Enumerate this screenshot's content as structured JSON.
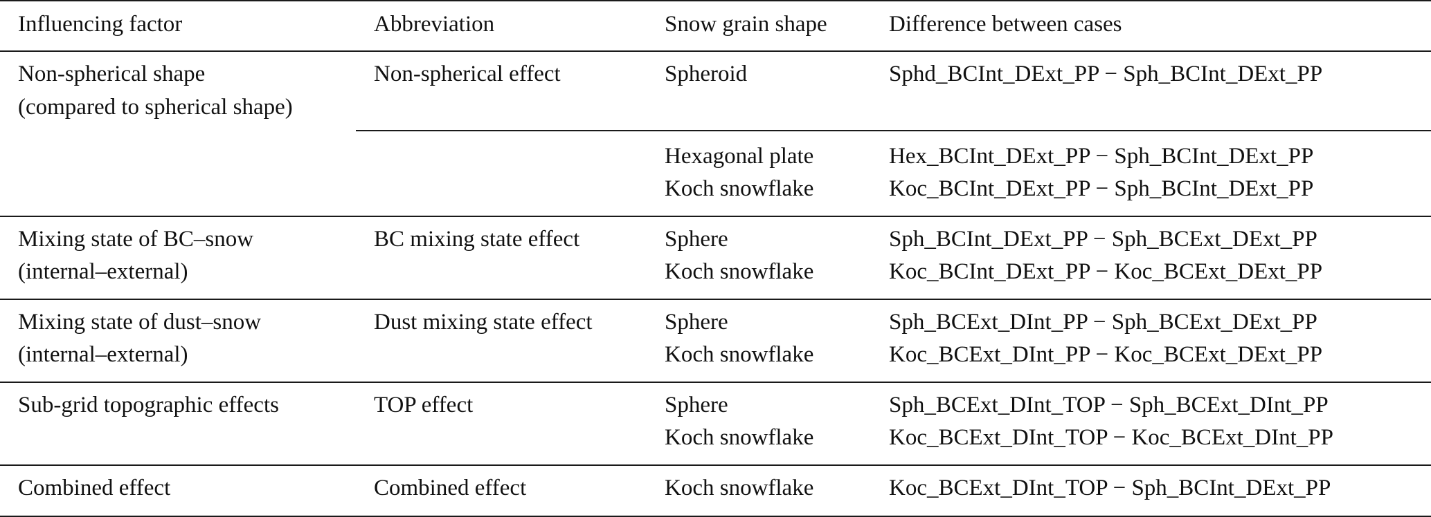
{
  "table": {
    "headers": [
      "Influencing factor",
      "Abbreviation",
      "Snow grain shape",
      "Difference between cases"
    ],
    "rows": [
      {
        "factor": [
          "Non-spherical shape",
          "(compared to spherical shape)"
        ],
        "abbreviation": "Non-spherical effect",
        "groups": [
          {
            "shapes": [
              "Spheroid"
            ],
            "differences": [
              "Sphd_BCInt_DExt_PP − Sph_BCInt_DExt_PP"
            ]
          },
          {
            "shapes": [
              "Hexagonal plate",
              "Koch snowflake"
            ],
            "differences": [
              "Hex_BCInt_DExt_PP − Sph_BCInt_DExt_PP",
              "Koc_BCInt_DExt_PP − Sph_BCInt_DExt_PP"
            ]
          }
        ]
      },
      {
        "factor": [
          "Mixing state of BC–snow",
          "(internal–external)"
        ],
        "abbreviation": "BC mixing state effect",
        "shapes": [
          "Sphere",
          "Koch snowflake"
        ],
        "differences": [
          "Sph_BCInt_DExt_PP − Sph_BCExt_DExt_PP",
          "Koc_BCInt_DExt_PP − Koc_BCExt_DExt_PP"
        ]
      },
      {
        "factor": [
          "Mixing state of dust–snow",
          "(internal–external)"
        ],
        "abbreviation": "Dust mixing state effect",
        "shapes": [
          "Sphere",
          "Koch snowflake"
        ],
        "differences": [
          "Sph_BCExt_DInt_PP − Sph_BCExt_DExt_PP",
          "Koc_BCExt_DInt_PP − Koc_BCExt_DExt_PP"
        ]
      },
      {
        "factor": [
          "Sub-grid topographic effects"
        ],
        "abbreviation": "TOP effect",
        "shapes": [
          "Sphere",
          "Koch snowflake"
        ],
        "differences": [
          "Sph_BCExt_DInt_TOP − Sph_BCExt_DInt_PP",
          "Koc_BCExt_DInt_TOP − Koc_BCExt_DInt_PP"
        ]
      },
      {
        "factor": [
          "Combined effect"
        ],
        "abbreviation": "Combined effect",
        "shapes": [
          "Koch snowflake"
        ],
        "differences": [
          "Koc_BCExt_DInt_TOP − Sph_BCInt_DExt_PP"
        ]
      }
    ]
  }
}
